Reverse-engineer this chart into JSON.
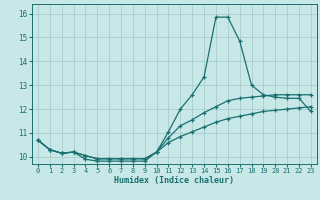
{
  "xlabel": "Humidex (Indice chaleur)",
  "xlim": [
    -0.5,
    23.5
  ],
  "ylim": [
    9.7,
    16.4
  ],
  "xticks": [
    0,
    1,
    2,
    3,
    4,
    5,
    6,
    7,
    8,
    9,
    10,
    11,
    12,
    13,
    14,
    15,
    16,
    17,
    18,
    19,
    20,
    21,
    22,
    23
  ],
  "yticks": [
    10,
    11,
    12,
    13,
    14,
    15,
    16
  ],
  "bg_color": "#c8e8e8",
  "grid_color": "#a8cccc",
  "line_color": "#1a7070",
  "curve1_y": [
    10.7,
    10.3,
    10.15,
    10.2,
    9.9,
    9.82,
    9.82,
    9.82,
    9.82,
    9.82,
    10.2,
    11.05,
    12.0,
    12.6,
    13.35,
    15.85,
    15.85,
    14.85,
    13.0,
    12.6,
    12.5,
    12.45,
    12.45,
    11.9
  ],
  "curve2_y": [
    10.7,
    10.3,
    10.15,
    10.2,
    10.05,
    9.92,
    9.92,
    9.92,
    9.92,
    9.92,
    10.2,
    10.8,
    11.3,
    11.55,
    11.85,
    12.1,
    12.35,
    12.45,
    12.5,
    12.55,
    12.6,
    12.6,
    12.6,
    12.6
  ],
  "curve3_y": [
    10.7,
    10.3,
    10.15,
    10.2,
    10.05,
    9.92,
    9.92,
    9.92,
    9.92,
    9.92,
    10.2,
    10.6,
    10.85,
    11.05,
    11.25,
    11.45,
    11.6,
    11.7,
    11.8,
    11.9,
    11.95,
    12.0,
    12.05,
    12.1
  ]
}
